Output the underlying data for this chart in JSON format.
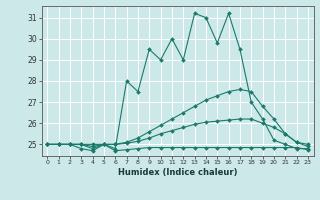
{
  "title": "",
  "xlabel": "Humidex (Indice chaleur)",
  "bg_color": "#cce8e8",
  "grid_color": "#ffffff",
  "line_color": "#1a7a6a",
  "xlim": [
    -0.5,
    23.5
  ],
  "ylim": [
    24.45,
    31.55
  ],
  "yticks": [
    25,
    26,
    27,
    28,
    29,
    30,
    31
  ],
  "xticks": [
    0,
    1,
    2,
    3,
    4,
    5,
    6,
    7,
    8,
    9,
    10,
    11,
    12,
    13,
    14,
    15,
    16,
    17,
    18,
    19,
    20,
    21,
    22,
    23
  ],
  "series1": [
    25.0,
    25.0,
    25.0,
    25.0,
    24.8,
    25.0,
    24.8,
    28.0,
    27.5,
    29.5,
    29.0,
    30.0,
    29.0,
    31.2,
    31.0,
    29.8,
    31.2,
    29.5,
    27.0,
    26.2,
    25.2,
    25.0,
    24.8,
    24.8
  ],
  "series2": [
    25.0,
    25.0,
    25.0,
    25.0,
    25.0,
    25.0,
    25.0,
    25.1,
    25.3,
    25.6,
    25.9,
    26.2,
    26.5,
    26.8,
    27.1,
    27.3,
    27.5,
    27.6,
    27.5,
    26.8,
    26.2,
    25.5,
    25.1,
    25.0
  ],
  "series3": [
    25.0,
    25.0,
    25.0,
    25.0,
    24.9,
    25.0,
    25.0,
    25.05,
    25.15,
    25.3,
    25.5,
    25.65,
    25.8,
    25.95,
    26.05,
    26.1,
    26.15,
    26.2,
    26.2,
    26.0,
    25.8,
    25.5,
    25.1,
    24.9
  ],
  "series4": [
    25.0,
    25.0,
    25.0,
    24.8,
    24.7,
    25.0,
    24.7,
    24.75,
    24.8,
    24.85,
    24.85,
    24.85,
    24.85,
    24.85,
    24.85,
    24.85,
    24.85,
    24.85,
    24.85,
    24.85,
    24.85,
    24.85,
    24.85,
    24.75
  ]
}
